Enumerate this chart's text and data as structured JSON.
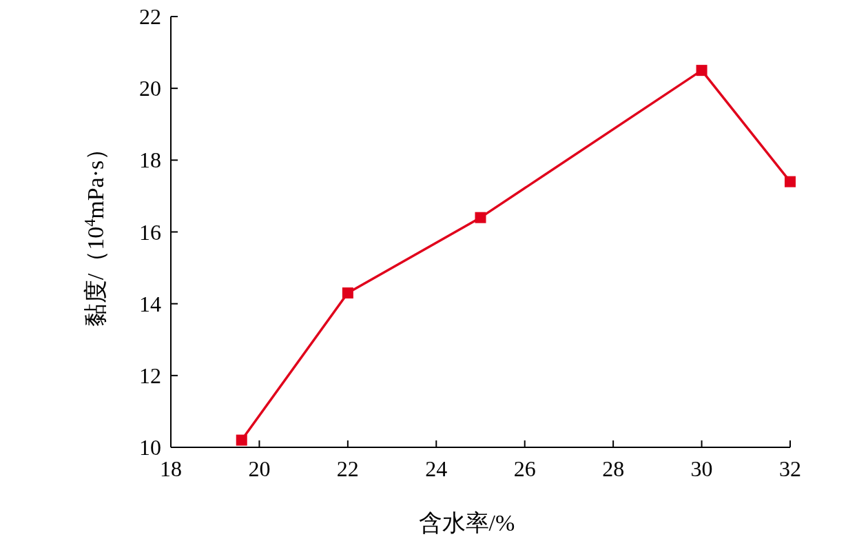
{
  "chart_data": {
    "type": "line",
    "xlabel": "含水率/%",
    "ylabel": "黏度/（10$^{4}$mPa·s）",
    "x": [
      19.6,
      22,
      25,
      30,
      32
    ],
    "series": [
      {
        "color": "#e0001b",
        "values": [
          10.2,
          14.3,
          16.4,
          20.5,
          17.4
        ]
      }
    ],
    "xlim": [
      18,
      32
    ],
    "ylim": [
      10,
      22
    ],
    "xticks": [
      18,
      20,
      22,
      24,
      26,
      28,
      30,
      32
    ],
    "yticks": [
      10,
      12,
      14,
      16,
      18,
      20,
      22
    ],
    "marker": "square",
    "line_style": "solid"
  }
}
